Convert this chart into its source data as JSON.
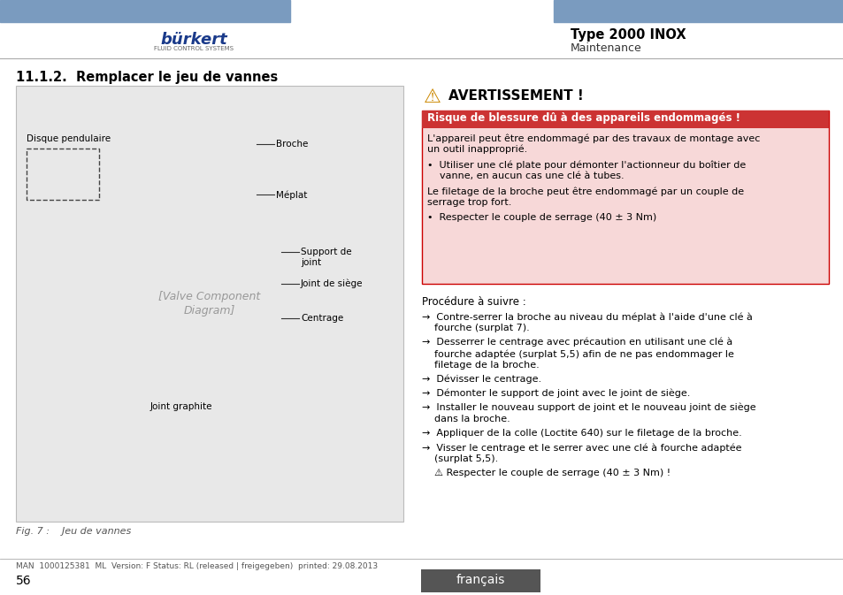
{
  "page_bg": "#ffffff",
  "header_bar_color": "#7a9bbf",
  "header_title": "Type 2000 INOX",
  "header_subtitle": "Maintenance",
  "logo_text": "bürkert",
  "logo_subtext": "FLUID CONTROL SYSTEMS",
  "section_title": "11.1.2.  Remplacer le jeu de vannes",
  "fig_caption": "Fig. 7 :    Jeu de vannes",
  "warning_title": "AVERTISSEMENT !",
  "warning_bg": "#f7d8d8",
  "warning_border": "#cc0000",
  "warning_bar_color": "#cc3333",
  "warning_bold": "Risque de blessure dû à des appareils endommagés !",
  "warning_text1a": "L'appareil peut être endommagé par des travaux de montage avec",
  "warning_text1b": "un outil inapproprié.",
  "warning_bullet1a": "•  Utiliser une clé plate pour démonter l'actionneur du boîtier de",
  "warning_bullet1b": "    vanne, en aucun cas une clé à tubes.",
  "warning_text2a": "Le filetage de la broche peut être endommagé par un couple de",
  "warning_text2b": "serrage trop fort.",
  "warning_bullet2": "•  Respecter le couple de serrage (40 ± 3 Nm)",
  "procedure_title": "Procédure à suivre :",
  "procedure_steps": [
    [
      "→  Contre-serrer la broche au niveau du méplat à l'aide d'une clé à",
      "    fourche (surplat 7)."
    ],
    [
      "→  Desserrer le centrage avec précaution en utilisant une clé à",
      "    fourche adaptée (surplat 5,5) afin de ne pas endommager le",
      "    filetage de la broche."
    ],
    [
      "→  Dévisser le centrage."
    ],
    [
      "→  Démonter le support de joint avec le joint de siège."
    ],
    [
      "→  Installer le nouveau support de joint et le nouveau joint de siège",
      "    dans la broche."
    ],
    [
      "→  Appliquer de la colle (Loctite 640) sur le filetage de la broche."
    ],
    [
      "→  Visser le centrage et le serrer avec une clé à fourche adaptée",
      "    (surplat 5,5)."
    ],
    [
      "    ⚠ Respecter le couple de serrage (40 ± 3 Nm) !"
    ]
  ],
  "footer_text": "MAN  1000125381  ML  Version: F Status: RL (released | freigegeben)  printed: 29.08.2013",
  "footer_page": "56",
  "footer_lang": "français",
  "footer_lang_bg": "#555555",
  "footer_lang_color": "#ffffff",
  "divider_color": "#aaaaaa",
  "image_labels": [
    "Disque pendulaire",
    "Broche",
    "Méplat",
    "Support de\njoint",
    "Joint de siège",
    "Centrage",
    "Joint graphite"
  ]
}
